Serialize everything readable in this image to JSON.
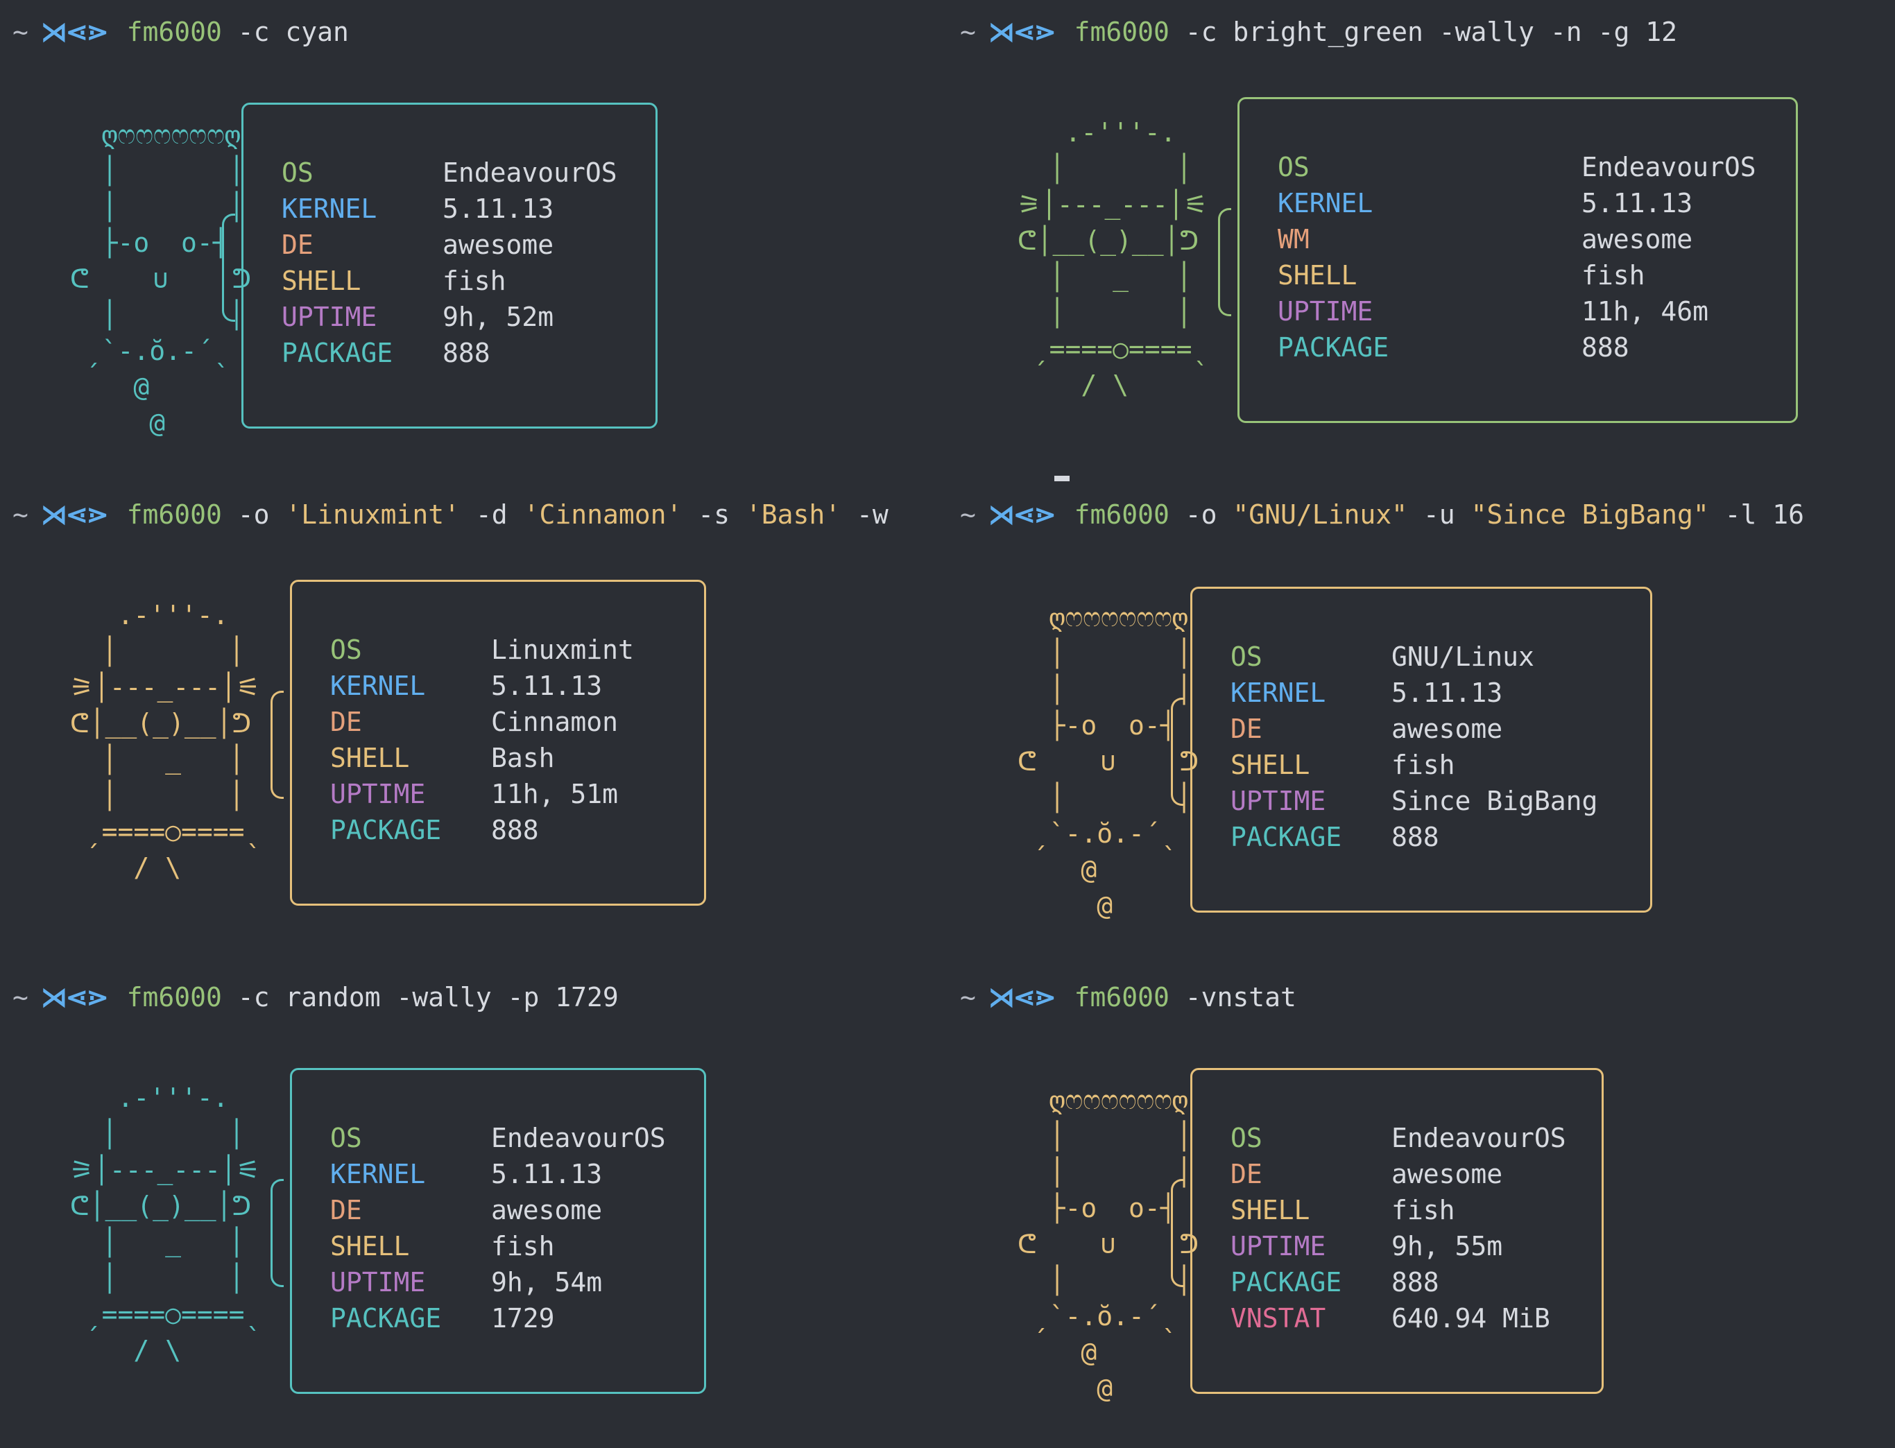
{
  "prompt": {
    "tilde": "~",
    "arrows": "⋊⋖⋗"
  },
  "colors": {
    "cyan": "#56c2c0",
    "green": "#98c379",
    "yellow": "#e5c07b",
    "os": "#98c379",
    "kernel": "#61afef",
    "de": "#e5a07b",
    "shell": "#e5c07b",
    "uptime": "#b57bc6",
    "package": "#56c2c0",
    "vnstat": "#e06c95"
  },
  "panes": [
    {
      "command": {
        "name": "fm6000",
        "args": [
          {
            "t": "-c cyan",
            "s": false
          }
        ]
      },
      "art_color": "#56c2c0",
      "art_lines": [
        "   ღෆෆෆෆෆෆღ",
        "   │       │",
        "   │       │",
        "   ├-o  o-┤",
        " ᕦ    ∪    ᕤ",
        "   │       │",
        "  ˏ`-.ŏ.-´ˎ",
        "     @",
        "      @"
      ],
      "info": [
        {
          "key": "OS",
          "value": "EndeavourOS",
          "cls": "c-os"
        },
        {
          "key": "KERNEL",
          "value": "5.11.13",
          "cls": "c-kernel"
        },
        {
          "key": "DE",
          "value": "awesome",
          "cls": "c-de"
        },
        {
          "key": "SHELL",
          "value": "fish",
          "cls": "c-shell"
        },
        {
          "key": "UPTIME",
          "value": "9h, 52m",
          "cls": "c-uptime"
        },
        {
          "key": "PACKAGE",
          "value": "888",
          "cls": "c-package"
        }
      ]
    },
    {
      "command": {
        "name": "fm6000",
        "args": [
          {
            "t": "-c bright_green -wally -n -g 12",
            "s": false
          }
        ]
      },
      "art_color": "#98c379",
      "art_lines": [
        "    .-'''-.",
        "   │       │",
        " ⚞│---_---│⚟",
        " ᕦ│__(_)__│ᕤ",
        "   │   _   │",
        "   │       │",
        "  ˏ====○====ˎ",
        "     / \\"
      ],
      "info": [
        {
          "key": "OS",
          "value": "EndeavourOS",
          "cls": "c-os"
        },
        {
          "key": "KERNEL",
          "value": "5.11.13",
          "cls": "c-kernel"
        },
        {
          "key": "WM",
          "value": "awesome",
          "cls": "c-de"
        },
        {
          "key": "SHELL",
          "value": "fish",
          "cls": "c-shell"
        },
        {
          "key": "UPTIME",
          "value": "11h, 46m",
          "cls": "c-uptime"
        },
        {
          "key": "PACKAGE",
          "value": "888",
          "cls": "c-package"
        }
      ]
    },
    {
      "command": {
        "name": "fm6000",
        "args": [
          {
            "t": "-o ",
            "s": false
          },
          {
            "t": "'Linuxmint'",
            "s": true
          },
          {
            "t": " -d ",
            "s": false
          },
          {
            "t": "'Cinnamon'",
            "s": true
          },
          {
            "t": " -s ",
            "s": false
          },
          {
            "t": "'Bash'",
            "s": true
          },
          {
            "t": " -w",
            "s": false
          }
        ]
      },
      "art_color": "#e5c07b",
      "art_lines": [
        "    .-'''-.",
        "   │       │",
        " ⚞│---_---│⚟",
        " ᕦ│__(_)__│ᕤ",
        "   │   _   │",
        "   │       │",
        "  ˏ====○====ˎ",
        "     / \\"
      ],
      "info": [
        {
          "key": "OS",
          "value": "Linuxmint",
          "cls": "c-os"
        },
        {
          "key": "KERNEL",
          "value": "5.11.13",
          "cls": "c-kernel"
        },
        {
          "key": "DE",
          "value": "Cinnamon",
          "cls": "c-de"
        },
        {
          "key": "SHELL",
          "value": "Bash",
          "cls": "c-shell"
        },
        {
          "key": "UPTIME",
          "value": "11h, 51m",
          "cls": "c-uptime"
        },
        {
          "key": "PACKAGE",
          "value": "888",
          "cls": "c-package"
        }
      ]
    },
    {
      "command": {
        "name": "fm6000",
        "args": [
          {
            "t": "-o ",
            "s": false
          },
          {
            "t": "\"GNU/Linux\"",
            "s": true
          },
          {
            "t": " -u ",
            "s": false
          },
          {
            "t": "\"Since BigBang\"",
            "s": true
          },
          {
            "t": " -l 16",
            "s": false
          }
        ]
      },
      "art_color": "#e5c07b",
      "art_lines": [
        "   ღෆෆෆෆෆෆღ",
        "   │       │",
        "   │       │",
        "   ├-o  o-┤",
        " ᕦ    ∪    ᕤ",
        "   │       │",
        "  ˏ`-.ŏ.-´ˎ",
        "     @",
        "      @"
      ],
      "info": [
        {
          "key": "OS",
          "value": "GNU/Linux",
          "cls": "c-os"
        },
        {
          "key": "KERNEL",
          "value": "5.11.13",
          "cls": "c-kernel"
        },
        {
          "key": "DE",
          "value": "awesome",
          "cls": "c-de"
        },
        {
          "key": "SHELL",
          "value": "fish",
          "cls": "c-shell"
        },
        {
          "key": "UPTIME",
          "value": "Since BigBang",
          "cls": "c-uptime"
        },
        {
          "key": "PACKAGE",
          "value": "888",
          "cls": "c-package"
        }
      ]
    },
    {
      "command": {
        "name": "fm6000",
        "args": [
          {
            "t": "-c random -wally -p 1729",
            "s": false
          }
        ]
      },
      "art_color": "#56c2c0",
      "art_lines": [
        "    .-'''-.",
        "   │       │",
        " ⚞│---_---│⚟",
        " ᕦ│__(_)__│ᕤ",
        "   │   _   │",
        "   │       │",
        "  ˏ====○====ˎ",
        "     / \\"
      ],
      "info": [
        {
          "key": "OS",
          "value": "EndeavourOS",
          "cls": "c-os"
        },
        {
          "key": "KERNEL",
          "value": "5.11.13",
          "cls": "c-kernel"
        },
        {
          "key": "DE",
          "value": "awesome",
          "cls": "c-de"
        },
        {
          "key": "SHELL",
          "value": "fish",
          "cls": "c-shell"
        },
        {
          "key": "UPTIME",
          "value": "9h, 54m",
          "cls": "c-uptime"
        },
        {
          "key": "PACKAGE",
          "value": "1729",
          "cls": "c-package"
        }
      ]
    },
    {
      "command": {
        "name": "fm6000",
        "args": [
          {
            "t": "-vnstat",
            "s": false
          }
        ]
      },
      "art_color": "#e5c07b",
      "art_lines": [
        "   ღෆෆෆෆෆෆღ",
        "   │       │",
        "   │       │",
        "   ├-o  o-┤",
        " ᕦ    ∪    ᕤ",
        "   │       │",
        "  ˏ`-.ŏ.-´ˎ",
        "     @",
        "      @"
      ],
      "info": [
        {
          "key": "OS",
          "value": "EndeavourOS",
          "cls": "c-os"
        },
        {
          "key": "DE",
          "value": "awesome",
          "cls": "c-de"
        },
        {
          "key": "SHELL",
          "value": "fish",
          "cls": "c-shell"
        },
        {
          "key": "UPTIME",
          "value": "9h, 55m",
          "cls": "c-uptime"
        },
        {
          "key": "PACKAGE",
          "value": "888",
          "cls": "c-package"
        },
        {
          "key": "VNSTAT",
          "value": "640.94 MiB",
          "cls": "c-vnstat"
        }
      ]
    }
  ]
}
